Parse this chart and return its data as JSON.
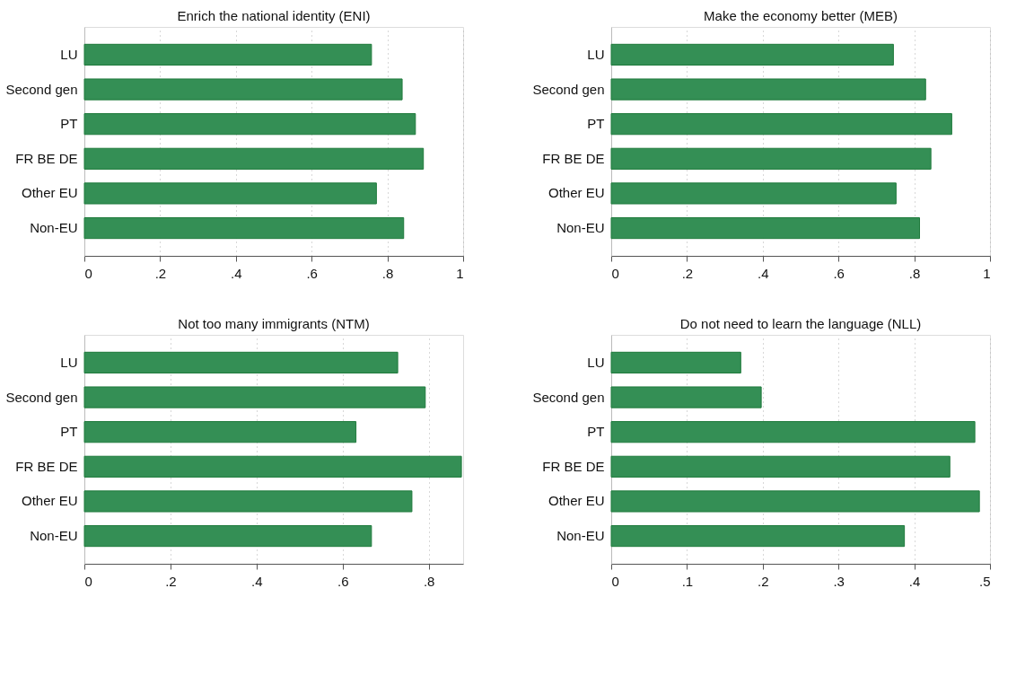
{
  "chart_data": [
    {
      "type": "bar",
      "orientation": "horizontal",
      "title": "Enrich the national identity (ENI)",
      "categories": [
        "LU",
        "Second gen",
        "PT",
        "FR BE DE",
        "Other EU",
        "Non-EU"
      ],
      "values": [
        0.758,
        0.839,
        0.874,
        0.895,
        0.771,
        0.843
      ],
      "color": "#348f55",
      "xlim": [
        0,
        1
      ],
      "xticks": [
        0,
        {
          "value": 0.2,
          "label": ".2"
        },
        {
          "value": 0.4,
          "label": ".4"
        },
        {
          "value": 0.6,
          "label": ".6"
        },
        {
          "value": 0.8,
          "label": ".8"
        },
        1
      ],
      "grid": "x"
    },
    {
      "type": "bar",
      "orientation": "horizontal",
      "title": "Make the economy better (MEB)",
      "categories": [
        "LU",
        "Second gen",
        "PT",
        "FR BE DE",
        "Other EU",
        "Non-EU"
      ],
      "values": [
        0.745,
        0.83,
        0.899,
        0.844,
        0.752,
        0.814
      ],
      "color": "#348f55",
      "xlim": [
        0,
        1
      ],
      "xticks": [
        0,
        {
          "value": 0.2,
          "label": ".2"
        },
        {
          "value": 0.4,
          "label": ".4"
        },
        {
          "value": 0.6,
          "label": ".6"
        },
        {
          "value": 0.8,
          "label": ".8"
        },
        1
      ],
      "grid": "x"
    },
    {
      "type": "bar",
      "orientation": "horizontal",
      "title": "Not too many immigrants (NTM)",
      "categories": [
        "LU",
        "Second gen",
        "PT",
        "FR BE DE",
        "Other EU",
        "Non-EU"
      ],
      "values": [
        0.728,
        0.792,
        0.631,
        0.876,
        0.761,
        0.667
      ],
      "color": "#348f55",
      "xlim": [
        0,
        0.88
      ],
      "xticks": [
        0,
        {
          "value": 0.2,
          "label": ".2"
        },
        {
          "value": 0.4,
          "label": ".4"
        },
        {
          "value": 0.6,
          "label": ".6"
        },
        {
          "value": 0.8,
          "label": ".8"
        }
      ],
      "grid": "x"
    },
    {
      "type": "bar",
      "orientation": "horizontal",
      "title": "Do not need to learn the language (NLL)",
      "categories": [
        "LU",
        "Second gen",
        "PT",
        "FR BE DE",
        "Other EU",
        "Non-EU"
      ],
      "values": [
        0.171,
        0.198,
        0.48,
        0.447,
        0.486,
        0.387
      ],
      "color": "#348f55",
      "xlim": [
        0,
        0.5
      ],
      "xticks": [
        0,
        {
          "value": 0.1,
          "label": ".1"
        },
        {
          "value": 0.2,
          "label": ".2"
        },
        {
          "value": 0.3,
          "label": ".3"
        },
        {
          "value": 0.4,
          "label": ".4"
        },
        {
          "value": 0.5,
          "label": ".5"
        }
      ],
      "grid": "x"
    }
  ]
}
